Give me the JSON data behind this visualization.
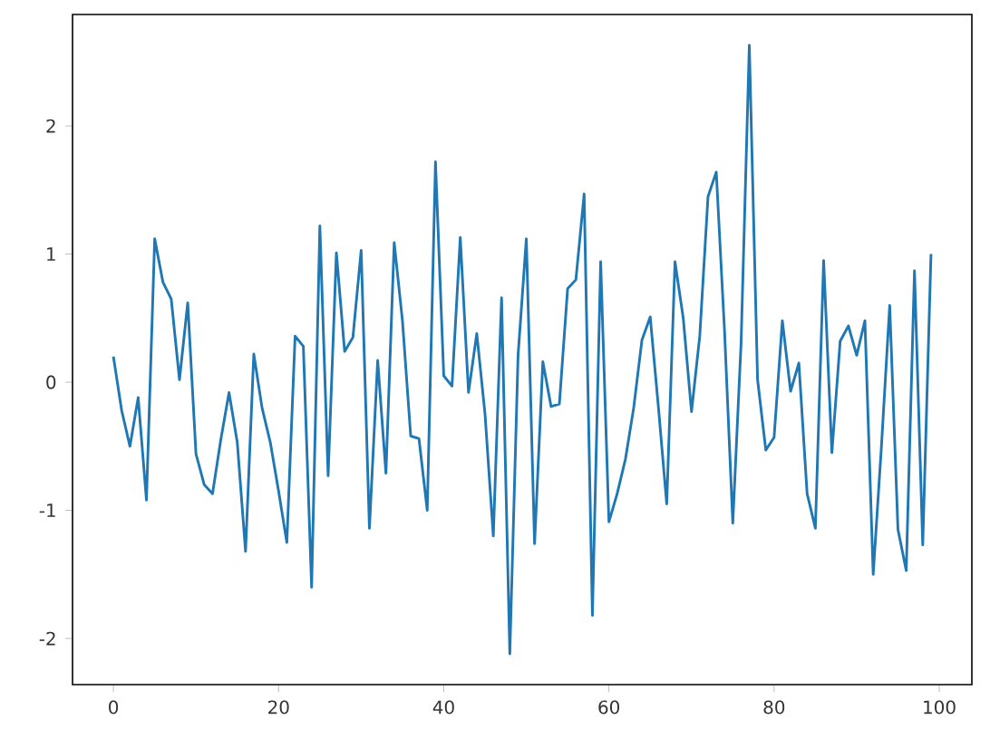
{
  "chart_data": {
    "type": "line",
    "x": [
      0,
      1,
      2,
      3,
      4,
      5,
      6,
      7,
      8,
      9,
      10,
      11,
      12,
      13,
      14,
      15,
      16,
      17,
      18,
      19,
      20,
      21,
      22,
      23,
      24,
      25,
      26,
      27,
      28,
      29,
      30,
      31,
      32,
      33,
      34,
      35,
      36,
      37,
      38,
      39,
      40,
      41,
      42,
      43,
      44,
      45,
      46,
      47,
      48,
      49,
      50,
      51,
      52,
      53,
      54,
      55,
      56,
      57,
      58,
      59,
      60,
      61,
      62,
      63,
      64,
      65,
      66,
      67,
      68,
      69,
      70,
      71,
      72,
      73,
      74,
      75,
      76,
      77,
      78,
      79,
      80,
      81,
      82,
      83,
      84,
      85,
      86,
      87,
      88,
      89,
      90,
      91,
      92,
      93,
      94,
      95,
      96,
      97,
      98,
      99
    ],
    "series": [
      {
        "color": "#1f77b4",
        "values": [
          0.2,
          -0.22,
          -0.5,
          -0.12,
          -0.92,
          1.12,
          0.78,
          0.65,
          0.02,
          0.62,
          -0.56,
          -0.8,
          -0.87,
          -0.45,
          -0.08,
          -0.47,
          -1.32,
          0.22,
          -0.2,
          -0.47,
          -0.85,
          -1.25,
          0.36,
          0.28,
          -1.6,
          1.22,
          -0.73,
          1.01,
          0.24,
          0.35,
          1.03,
          -1.14,
          0.17,
          -0.71,
          1.09,
          0.48,
          -0.42,
          -0.44,
          -1.0,
          1.72,
          0.05,
          -0.03,
          1.13,
          -0.08,
          0.38,
          -0.25,
          -1.2,
          0.66,
          -2.12,
          0.21,
          1.12,
          -1.26,
          0.16,
          -0.19,
          -0.17,
          0.73,
          0.8,
          1.47,
          -1.82,
          0.94,
          -1.09,
          -0.87,
          -0.6,
          -0.2,
          0.33,
          0.51,
          -0.2,
          -0.95,
          0.94,
          0.5,
          -0.23,
          0.36,
          1.45,
          1.64,
          0.4,
          -1.1,
          0.3,
          2.63,
          0.02,
          -0.53,
          -0.43,
          0.48,
          -0.07,
          0.15,
          -0.87,
          -1.14,
          0.95,
          -0.55,
          0.32,
          0.44,
          0.21,
          0.48,
          -1.5,
          -0.5,
          0.6,
          -1.15,
          -1.47,
          0.87,
          -1.27,
          1.0
        ]
      }
    ],
    "xlim": [
      -4.95,
      103.95
    ],
    "ylim": [
      -2.36,
      2.87
    ],
    "xticks": [
      0,
      20,
      40,
      60,
      80,
      100
    ],
    "yticks": [
      -2,
      -1,
      0,
      1,
      2
    ],
    "grid": false,
    "marker": "none",
    "line_style": "solid"
  }
}
